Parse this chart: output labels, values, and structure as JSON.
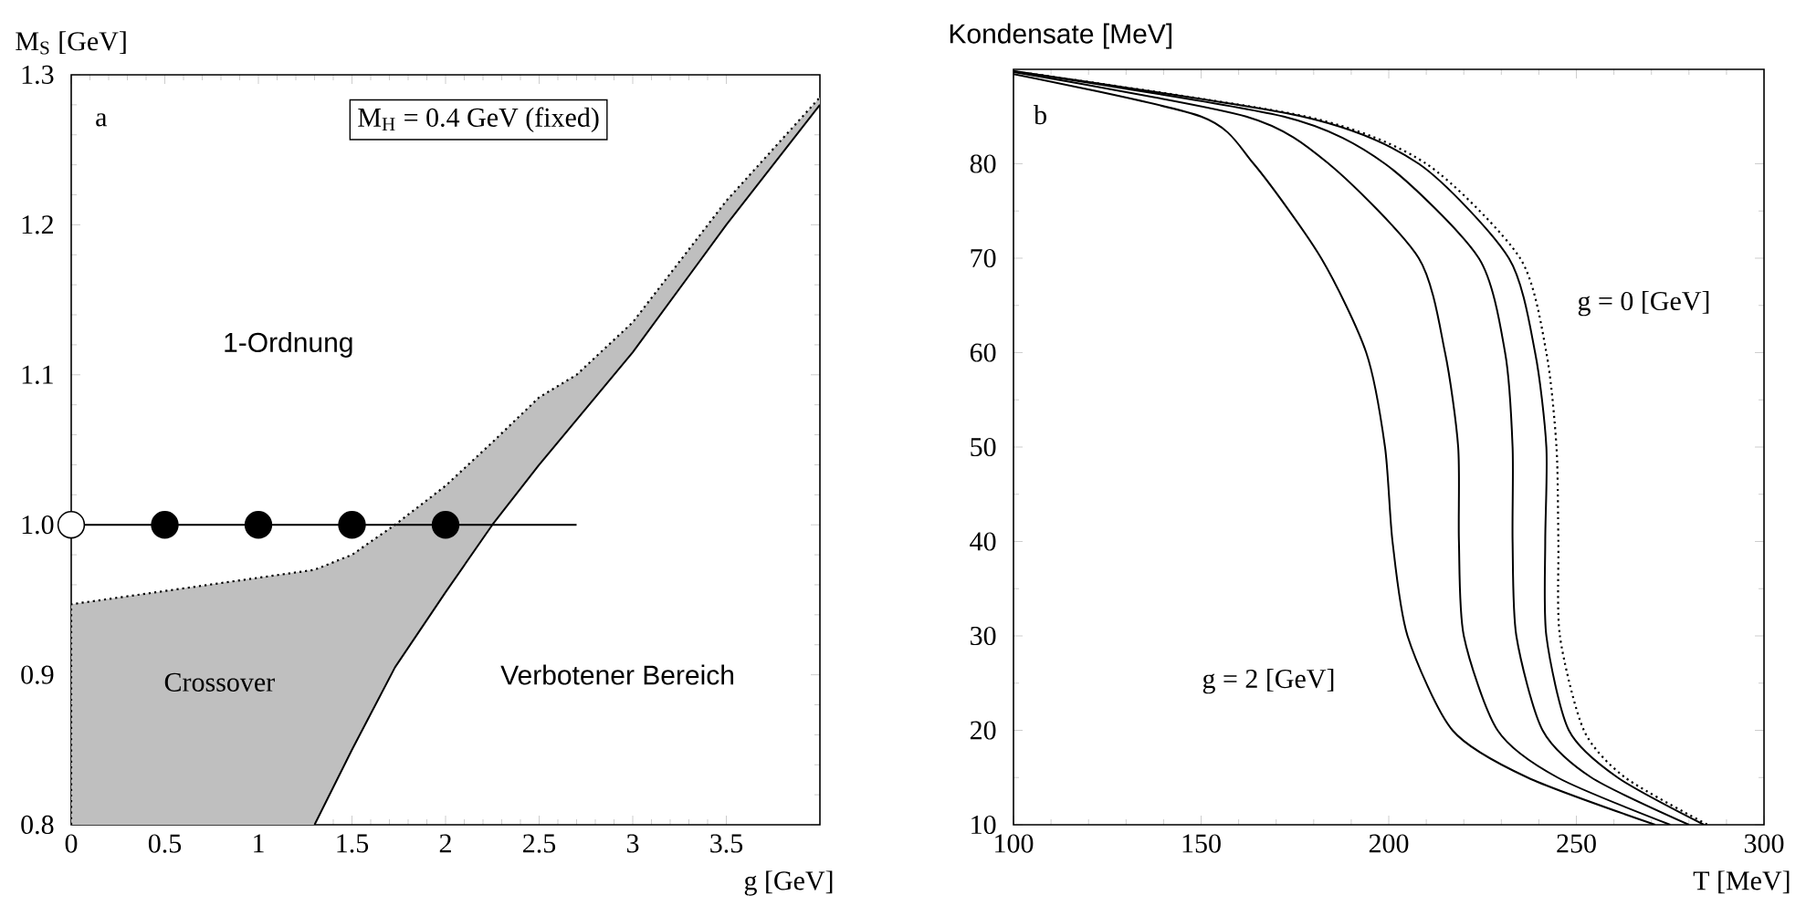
{
  "chart_data": [
    {
      "type": "line",
      "xlabel": "g [GeV]",
      "ylabel": "M$_{S}$ [GeV]",
      "xlim": [
        0,
        4
      ],
      "ylim": [
        0.8,
        1.3
      ],
      "xticks": [
        0,
        0.5,
        1,
        1.5,
        2,
        2.5,
        3,
        3.5
      ],
      "yticks": [
        0.8,
        0.9,
        {
          "value": 1,
          "label": "1.0"
        },
        1.1,
        1.2,
        1.3
      ],
      "annotations": [
        "a",
        "M$_{H}$ = 0.4 GeV (fixed)",
        "1-Ordnung",
        "Crossover",
        "Verbotener Bereich"
      ],
      "series": [
        {
          "type": "line",
          "line_style": "dotted",
          "color": "#000000",
          "x": [
            0,
            0,
            1.3,
            1.5,
            1.73,
            2.0,
            2.25,
            2.5,
            2.7,
            3.0,
            3.5,
            4.0
          ],
          "values": [
            0.8,
            0.947,
            0.97,
            0.98,
            1.0,
            1.026,
            1.055,
            1.085,
            1.1,
            1.135,
            1.216,
            1.285
          ],
          "lower": [
            0.8,
            0.8,
            0.8,
            0.85,
            0.905,
            0.955,
            1.0,
            1.04,
            1.07,
            1.115,
            1.2,
            1.28
          ],
          "upper": [
            0.8,
            0.947,
            0.97,
            0.98,
            1.0,
            1.026,
            1.055,
            1.085,
            1.1,
            1.135,
            1.216,
            1.285
          ]
        },
        {
          "type": "line",
          "line_style": "solid",
          "color": "#000000",
          "x": [
            1.3,
            1.5,
            1.73,
            2.0,
            2.25,
            2.5,
            2.7,
            3.0,
            3.5,
            4.0
          ],
          "values": [
            0.8,
            0.85,
            0.905,
            0.955,
            1.0,
            1.04,
            1.07,
            1.115,
            1.2,
            1.28
          ]
        },
        {
          "type": "line",
          "line_style": "solid",
          "color": "#000000",
          "x": [
            0,
            2.7
          ],
          "values": [
            1,
            1
          ]
        },
        {
          "type": "scatter",
          "marker": "circle",
          "color": "#000000",
          "x": [
            0.5,
            1,
            1.5,
            2
          ],
          "values": [
            1,
            1,
            1,
            1
          ]
        },
        {
          "type": "scatter",
          "marker": "circle",
          "color": "#ffffff",
          "x": [
            0
          ],
          "values": [
            1
          ]
        }
      ]
    },
    {
      "type": "line",
      "xlabel": "T [MeV]",
      "ylabel": "Kondensate  [MeV]",
      "xlim": [
        100,
        300
      ],
      "ylim": [
        10,
        90
      ],
      "xticks": [
        100,
        150,
        200,
        250,
        300
      ],
      "yticks": [
        10,
        20,
        30,
        40,
        50,
        60,
        70,
        80
      ],
      "annotations": [
        "b",
        "g = 0 [GeV]",
        "g = 2 [GeV]"
      ],
      "series": [
        {
          "line_style": "solid",
          "color": "#000000",
          "x": [
            100,
            150,
            164,
            182,
            194,
            199,
            201,
            205,
            217,
            237,
            271
          ],
          "values": [
            89.5,
            85,
            80,
            70,
            60,
            50,
            40,
            30,
            20,
            15,
            10
          ]
        },
        {
          "line_style": "solid",
          "color": "#000000",
          "x": [
            100,
            162,
            184,
            208,
            215,
            218.5,
            218.7,
            220,
            229,
            245,
            275
          ],
          "values": [
            89.7,
            85,
            80,
            70,
            60,
            50,
            40,
            30,
            20,
            15,
            10
          ]
        },
        {
          "line_style": "solid",
          "color": "#000000",
          "x": [
            100,
            172,
            199,
            224,
            231,
            233,
            233,
            234,
            241,
            254,
            280
          ],
          "values": [
            89.8,
            85,
            80,
            70,
            60,
            50,
            40,
            30,
            20,
            15,
            10
          ]
        },
        {
          "line_style": "solid",
          "color": "#000000",
          "x": [
            100,
            177,
            208,
            232,
            239,
            242,
            241.7,
            242,
            248,
            261,
            284
          ],
          "values": [
            89.8,
            85,
            80,
            70,
            60,
            50,
            40,
            30,
            20,
            15,
            10
          ]
        },
        {
          "line_style": "dotted",
          "color": "#000000",
          "x": [
            100,
            178,
            210,
            235,
            242,
            244.7,
            245.2,
            245.6,
            252,
            263,
            285
          ],
          "values": [
            89.8,
            85,
            80,
            70,
            60,
            50,
            40,
            30,
            20,
            15,
            10
          ]
        }
      ]
    }
  ]
}
